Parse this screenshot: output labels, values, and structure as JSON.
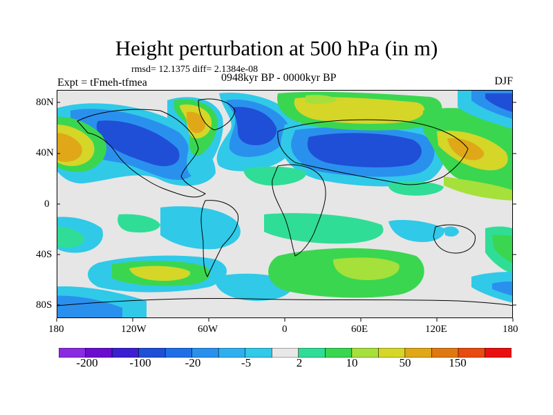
{
  "title": "Height perturbation at 500 hPa (in m)",
  "stats": "rmsd= 12.1375 diff= 2.1384e-08",
  "experiment": "Expt = tFmeh-tfmea",
  "period": "0948kyr BP - 0000kyr BP",
  "season": "DJF",
  "axes": {
    "lat_labels": [
      "80N",
      "40N",
      "0",
      "40S",
      "80S"
    ],
    "lon_labels": [
      "180",
      "120W",
      "60W",
      "0",
      "60E",
      "120E",
      "180"
    ]
  },
  "colorbar": {
    "colors": [
      "#8a2be2",
      "#6a0dcd",
      "#3b1fd0",
      "#1f4fd6",
      "#1f6fe6",
      "#2a90ee",
      "#2fb0ee",
      "#30c9e8",
      "#e8e8e8",
      "#30dd96",
      "#3ad650",
      "#a6e03a",
      "#d5d628",
      "#e0a818",
      "#e07810",
      "#e84a10",
      "#e81010"
    ],
    "labels": [
      "-200",
      "-100",
      "-20",
      "-5",
      "2",
      "10",
      "50",
      "150"
    ]
  },
  "colors": {
    "neutral": "#e6e6e6",
    "blue_dark": "#1f4fd6",
    "blue": "#2a90ee",
    "cyan": "#30c9e8",
    "green_light": "#30dd96",
    "green": "#3ad650",
    "yellow_green": "#a6e03a",
    "yellow": "#d5d628",
    "orange": "#e0a818"
  }
}
